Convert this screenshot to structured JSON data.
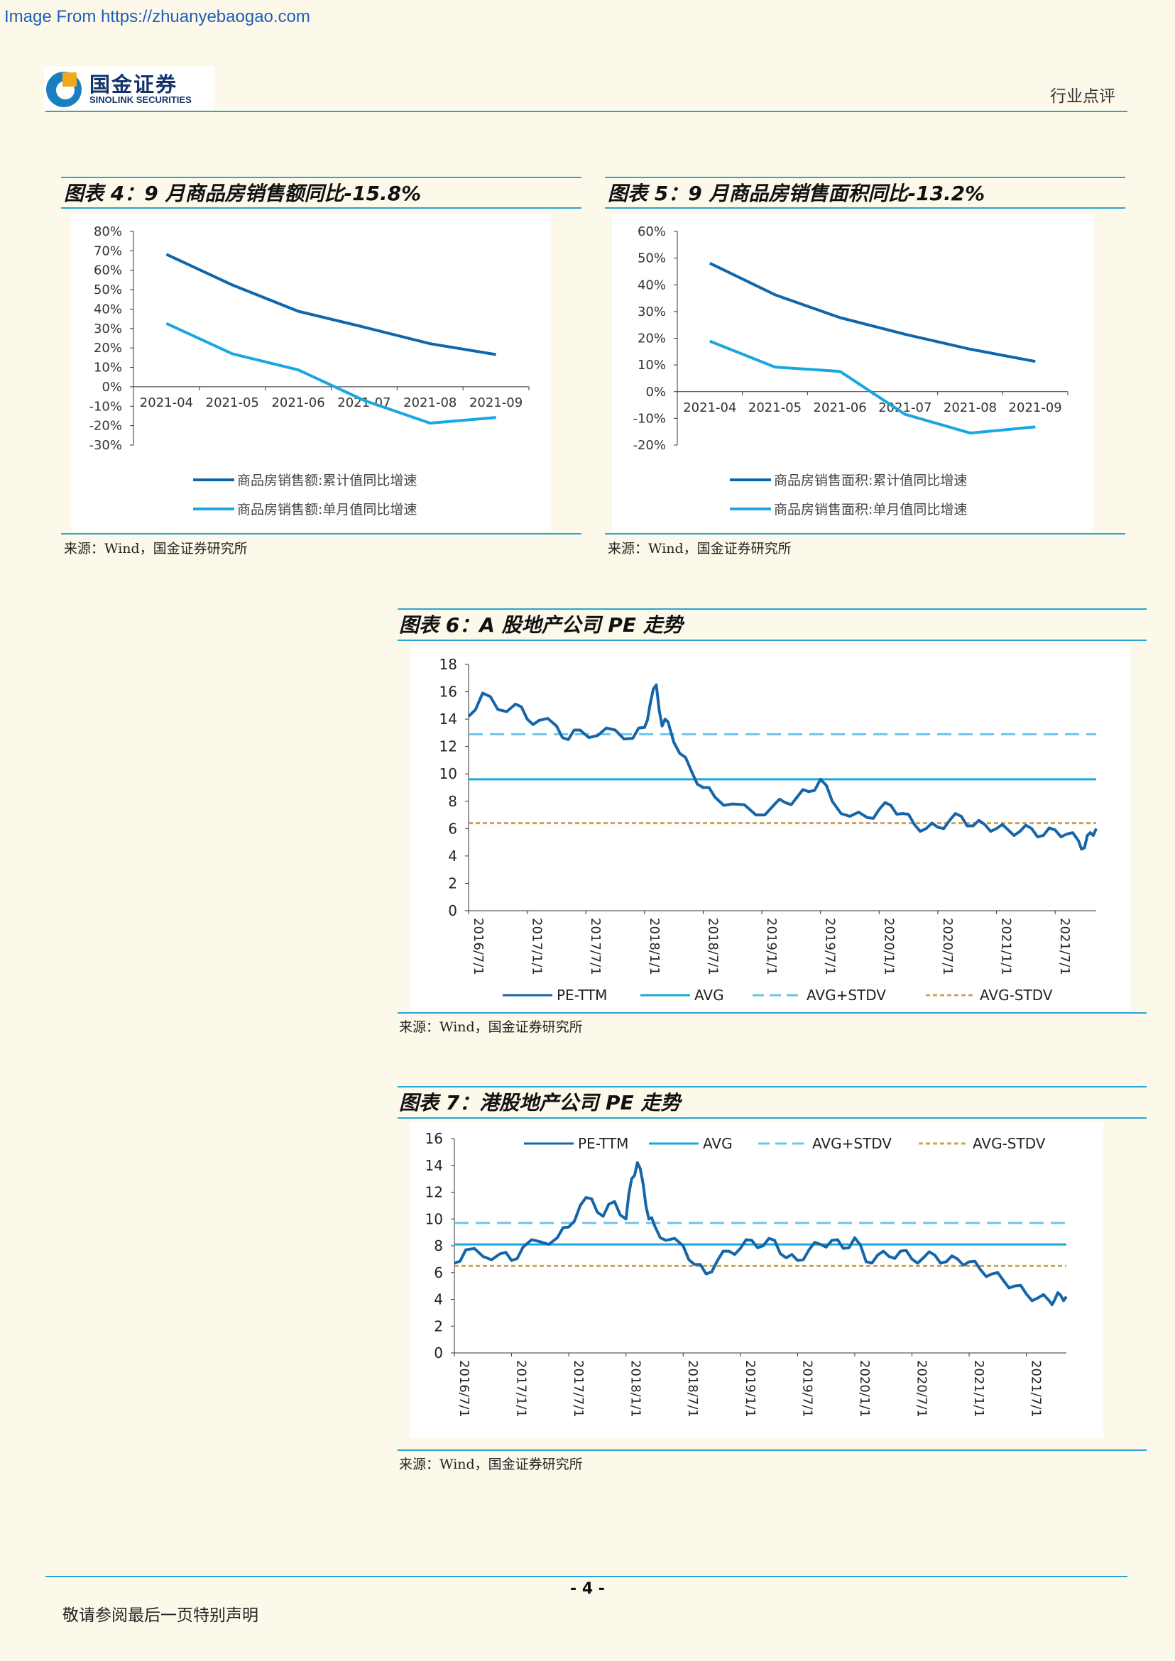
{
  "watermark": "Image From https://zhuanyebaogao.com",
  "header": {
    "logo_cn": "国金证券",
    "logo_en": "SINOLINK SECURITIES",
    "logo_icon": "sinolink-logo-icon",
    "category": "行业点评"
  },
  "colors": {
    "dark_blue": "#0e67ad",
    "light_blue": "#1aa6e0",
    "dash_blue": "#6cc4ee",
    "gold": "#c9a45a",
    "rule": "#2aa4d6"
  },
  "figures": [
    {
      "title": "图表 4：9 月商品房销售额同比-15.8%",
      "source": "来源：Wind，国金证券研究所",
      "chart_data": {
        "type": "line",
        "categories": [
          "2021-04",
          "2021-05",
          "2021-06",
          "2021-07",
          "2021-08",
          "2021-09"
        ],
        "series": [
          {
            "name": "商品房销售额:累计值同比增速",
            "values": [
              68.2,
              52.4,
              38.9,
              30.7,
              22.2,
              16.6
            ]
          },
          {
            "name": "商品房销售额:单月值同比增速",
            "values": [
              32.6,
              17.0,
              8.7,
              -7.0,
              -18.7,
              -15.8
            ]
          }
        ],
        "ylim": [
          -30,
          80
        ],
        "yticks": [
          "-30%",
          "-20%",
          "-10%",
          "0%",
          "10%",
          "20%",
          "30%",
          "40%",
          "50%",
          "60%",
          "70%",
          "80%"
        ],
        "legend": "bottom"
      }
    },
    {
      "title": "图表 5：9 月商品房销售面积同比-13.2%",
      "source": "来源：Wind，国金证券研究所",
      "chart_data": {
        "type": "line",
        "categories": [
          "2021-04",
          "2021-05",
          "2021-06",
          "2021-07",
          "2021-08",
          "2021-09"
        ],
        "series": [
          {
            "name": "商品房销售面积:累计值同比增速",
            "values": [
              48.1,
              36.3,
              27.7,
              21.5,
              15.9,
              11.3
            ]
          },
          {
            "name": "商品房销售面积:单月值同比增速",
            "values": [
              18.9,
              9.2,
              7.6,
              -8.5,
              -15.5,
              -13.2
            ]
          }
        ],
        "ylim": [
          -20,
          60
        ],
        "yticks": [
          "-20%",
          "-10%",
          "0%",
          "10%",
          "20%",
          "30%",
          "40%",
          "50%",
          "60%"
        ],
        "legend": "bottom"
      }
    },
    {
      "title": "图表 6：A 股地产公司 PE 走势",
      "source": "来源：Wind，国金证券研究所",
      "chart_data": {
        "type": "line",
        "x_ticks": [
          "2016/7/1",
          "2017/1/1",
          "2017/7/1",
          "2018/1/1",
          "2018/7/1",
          "2019/1/1",
          "2019/7/1",
          "2020/1/1",
          "2020/7/1",
          "2021/1/1",
          "2021/7/1"
        ],
        "x_range": [
          2016.5,
          2021.85
        ],
        "ylim": [
          0,
          18
        ],
        "yticks": [
          "0",
          "2",
          "4",
          "6",
          "8",
          "10",
          "12",
          "14",
          "16",
          "18"
        ],
        "series": [
          {
            "name": "PE-TTM",
            "x": [
              2016.5,
              2016.62,
              2016.75,
              2016.9,
              2017.0,
              2017.1,
              2017.25,
              2017.35,
              2017.45,
              2017.6,
              2017.75,
              2017.9,
              2018.0,
              2018.05,
              2018.1,
              2018.15,
              2018.2,
              2018.3,
              2018.4,
              2018.5,
              2018.6,
              2018.75,
              2018.95,
              2019.1,
              2019.2,
              2019.3,
              2019.4,
              2019.5,
              2019.6,
              2019.75,
              2019.9,
              2020.0,
              2020.1,
              2020.2,
              2020.3,
              2020.4,
              2020.5,
              2020.6,
              2020.7,
              2020.8,
              2020.9,
              2021.0,
              2021.1,
              2021.2,
              2021.3,
              2021.4,
              2021.5,
              2021.6,
              2021.7,
              2021.75,
              2021.8,
              2021.85
            ],
            "values": [
              14.2,
              15.9,
              14.7,
              15.1,
              14.0,
              13.9,
              13.5,
              12.5,
              13.2,
              12.8,
              13.2,
              12.6,
              13.4,
              15.2,
              16.5,
              13.5,
              13.8,
              11.5,
              10.2,
              9.0,
              8.3,
              7.8,
              7.0,
              7.7,
              7.9,
              8.3,
              8.7,
              9.6,
              8.0,
              6.9,
              6.8,
              7.4,
              7.7,
              7.1,
              6.3,
              6.0,
              6.1,
              6.6,
              6.9,
              6.2,
              6.3,
              6.0,
              5.9,
              5.8,
              6.0,
              5.5,
              5.9,
              5.6,
              5.1,
              4.6,
              5.7,
              6.0
            ]
          },
          {
            "name": "AVG",
            "values": [
              9.6,
              9.6
            ]
          },
          {
            "name": "AVG+STDV",
            "values": [
              12.9,
              12.9
            ]
          },
          {
            "name": "AVG-STDV",
            "values": [
              6.4,
              6.4
            ]
          }
        ],
        "legend": "bottom"
      }
    },
    {
      "title": "图表 7：港股地产公司 PE 走势",
      "source": "来源：Wind，国金证券研究所",
      "chart_data": {
        "type": "line",
        "x_ticks": [
          "2016/7/1",
          "2017/1/1",
          "2017/7/1",
          "2018/1/1",
          "2018/7/1",
          "2019/1/1",
          "2019/7/1",
          "2020/1/1",
          "2020/7/1",
          "2021/1/1",
          "2021/7/1"
        ],
        "x_range": [
          2016.5,
          2021.85
        ],
        "ylim": [
          0,
          16
        ],
        "yticks": [
          "0",
          "2",
          "4",
          "6",
          "8",
          "10",
          "12",
          "14",
          "16"
        ],
        "series": [
          {
            "name": "PE-TTM",
            "x": [
              2016.5,
              2016.6,
              2016.75,
              2016.9,
              2017.0,
              2017.1,
              2017.25,
              2017.4,
              2017.5,
              2017.6,
              2017.7,
              2017.8,
              2017.9,
              2018.0,
              2018.05,
              2018.1,
              2018.15,
              2018.2,
              2018.25,
              2018.35,
              2018.5,
              2018.6,
              2018.7,
              2018.8,
              2018.9,
              2019.0,
              2019.1,
              2019.2,
              2019.3,
              2019.4,
              2019.5,
              2019.6,
              2019.7,
              2019.8,
              2019.9,
              2020.0,
              2020.1,
              2020.2,
              2020.3,
              2020.4,
              2020.5,
              2020.6,
              2020.7,
              2020.8,
              2020.9,
              2021.0,
              2021.1,
              2021.2,
              2021.3,
              2021.4,
              2021.5,
              2021.6,
              2021.7,
              2021.75,
              2021.8,
              2021.85
            ],
            "values": [
              6.7,
              7.7,
              7.2,
              7.4,
              6.9,
              7.9,
              8.3,
              8.6,
              9.4,
              11.0,
              11.5,
              10.2,
              11.3,
              10.0,
              13.0,
              14.2,
              12.6,
              10.0,
              9.5,
              8.4,
              8.0,
              6.6,
              5.9,
              6.9,
              7.6,
              7.8,
              8.4,
              8.0,
              8.4,
              7.1,
              6.9,
              7.7,
              8.1,
              8.4,
              7.8,
              8.6,
              6.8,
              7.3,
              7.2,
              7.6,
              7.0,
              7.1,
              7.3,
              6.8,
              7.0,
              6.8,
              6.2,
              5.9,
              5.4,
              5.0,
              4.4,
              4.1,
              3.9,
              4.0,
              4.3,
              4.2
            ]
          },
          {
            "name": "AVG",
            "values": [
              8.1,
              8.1
            ]
          },
          {
            "name": "AVG+STDV",
            "values": [
              9.7,
              9.7
            ]
          },
          {
            "name": "AVG-STDV",
            "values": [
              6.5,
              6.5
            ]
          }
        ],
        "legend": "top"
      }
    }
  ],
  "footer": {
    "page_number": "- 4 -",
    "note": "敬请参阅最后一页特别声明"
  }
}
